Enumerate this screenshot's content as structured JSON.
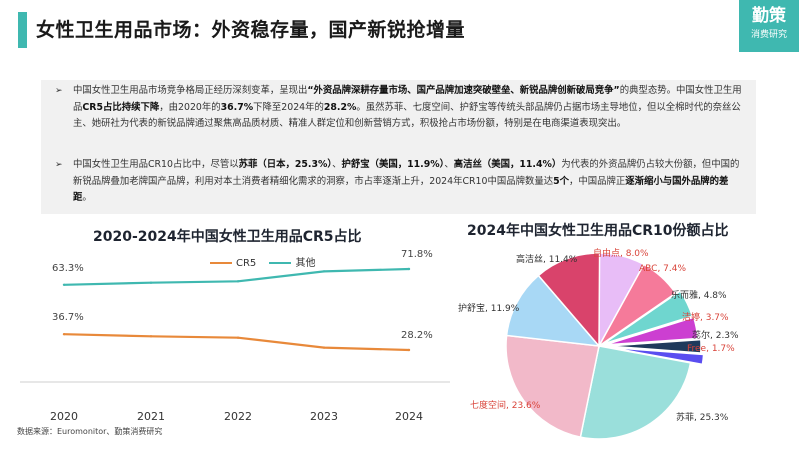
{
  "header": {
    "title": "女性卫生用品市场：外资稳存量，国产新锐抢增量",
    "logo_main": "勤策",
    "logo_sub": "消费研究"
  },
  "summary": {
    "bullet1": {
      "t1": "中国女性卫生用品市场竞争格局正经历深刻变革，呈现出",
      "b1": "“外资品牌深耕存量市场、国产品牌加速突破壁垒、新锐品牌创新破局竞争”",
      "t2": "的典型态势。中国女性卫生用品",
      "b2": "CR5占比持续下降",
      "t3": "，由2020年的",
      "b3": "36.7%",
      "t4": "下降至2024年的",
      "b4": "28.2%",
      "t5": "。虽然苏菲、七度空间、护舒宝等传统头部品牌仍占据市场主导地位，但以全棉时代的奈丝公主、她研社为代表的新锐品牌通过聚焦高品质材质、精准人群定位和创新营销方式，积极抢占市场份额，特别是在电商渠道表现突出。"
    },
    "bullet2": {
      "t1": "中国女性卫生用品CR10占比中，尽管以",
      "b1": "苏菲（日本，25.3%）",
      "t2": "、",
      "b2": "护舒宝（美国，11.9%）",
      "t3": "、",
      "b3": "高洁丝（美国，11.4%）",
      "t4": "为代表的外资品牌仍占较大份额，但中国的新锐品牌叠加老牌国产品牌，利用对本土消费者精细化需求的洞察，市占率逐渐上升，2024年CR10中国品牌数量达",
      "b4": "5个",
      "t5": "，中国品牌正",
      "b5": "逐渐缩小与国外品牌的差距",
      "t6": "。"
    }
  },
  "source": "数据来源：Euromonitor、勤策消费研究",
  "chart_data": [
    {
      "type": "line",
      "title": "2020-2024年中国女性卫生用品CR5占比",
      "x": [
        "2020",
        "2021",
        "2022",
        "2023",
        "2024"
      ],
      "series": [
        {
          "name": "CR5",
          "color": "#e8893a",
          "values": [
            36.7,
            35.6,
            34.8,
            29.5,
            28.2
          ],
          "labels": {
            "first": "36.7%",
            "last": "28.2%"
          }
        },
        {
          "name": "其他",
          "color": "#3fb8b0",
          "values": [
            63.3,
            64.4,
            65.2,
            70.5,
            71.8
          ],
          "labels": {
            "first": "63.3%",
            "last": "71.8%"
          }
        }
      ],
      "legend_position": "top-center",
      "grid": false
    },
    {
      "type": "pie",
      "title": "2024年中国女性卫生用品CR10份额占比",
      "slices": [
        {
          "label": "苏菲, 25.3%",
          "value": 25.3,
          "color": "#9adfdb",
          "label_color": "#333333"
        },
        {
          "label": "七度空间, 23.6%",
          "value": 23.6,
          "color": "#f2b9c9",
          "label_color": "#d9443a"
        },
        {
          "label": "护舒宝, 11.9%",
          "value": 11.9,
          "color": "#a8d8f5",
          "label_color": "#333333"
        },
        {
          "label": "高洁丝, 11.4%",
          "value": 11.4,
          "color": "#d9436b",
          "label_color": "#333333"
        },
        {
          "label": "自由点, 8.0%",
          "value": 8.0,
          "color": "#e8bdf7",
          "label_color": "#d9443a"
        },
        {
          "label": "ABC, 7.4%",
          "value": 7.4,
          "color": "#f57a9a",
          "label_color": "#d9443a"
        },
        {
          "label": "乐而雅, 4.8%",
          "value": 4.8,
          "color": "#6fd6cf",
          "label_color": "#333333"
        },
        {
          "label": "洁婷, 3.7%",
          "value": 3.7,
          "color": "#cc3fd1",
          "label_color": "#d9443a"
        },
        {
          "label": "蕊尔, 2.3%",
          "value": 2.3,
          "color": "#1f3a5c",
          "label_color": "#333333"
        },
        {
          "label": "Free, 1.7%",
          "value": 1.7,
          "color": "#5a4df0",
          "label_color": "#d9443a"
        }
      ]
    }
  ]
}
